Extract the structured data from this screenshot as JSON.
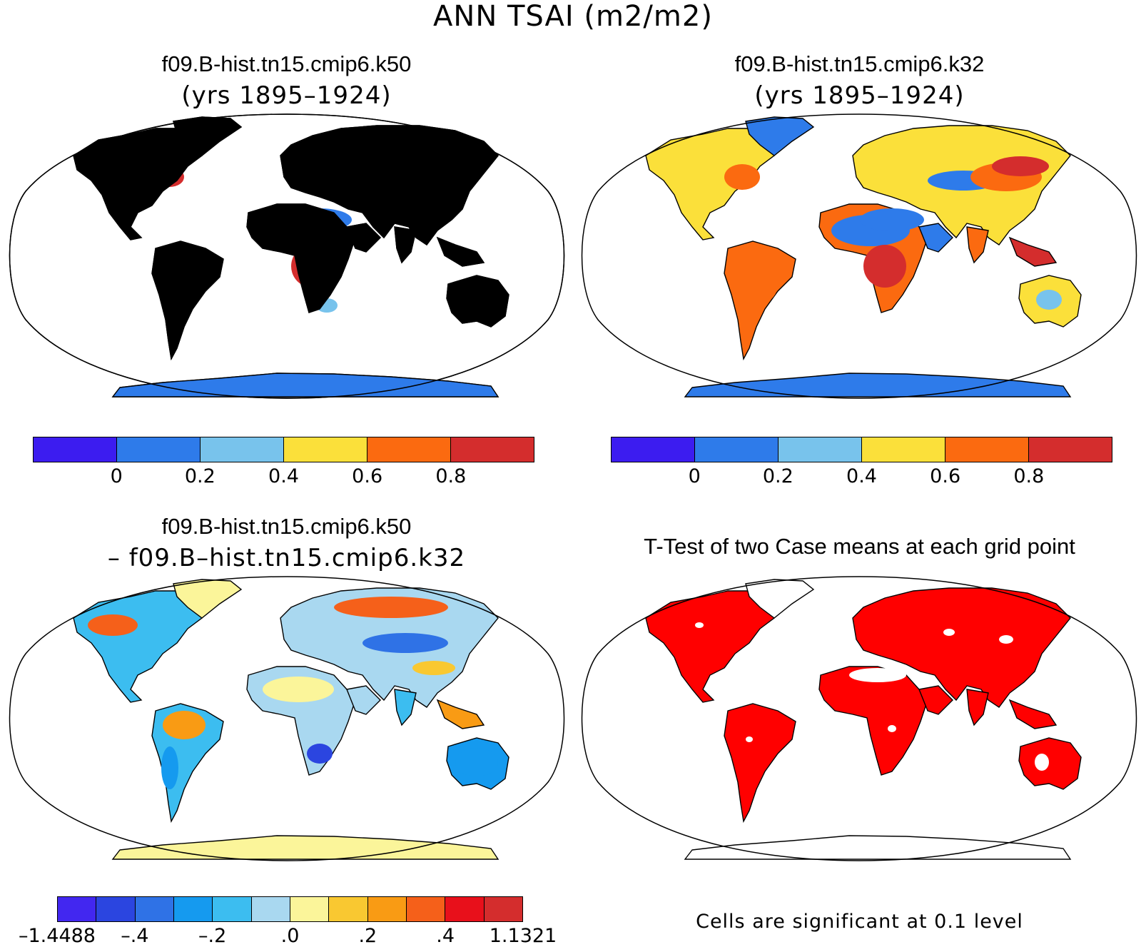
{
  "title": "ANN TSAI (m2/m2)",
  "panels": [
    {
      "name": "k50",
      "title": "f09.B-hist.tn15.cmip6.k50",
      "subtitle": "(yrs 1895–1924)"
    },
    {
      "name": "k32",
      "title": "f09.B-hist.tn15.cmip6.k32",
      "subtitle": "(yrs 1895–1924)"
    },
    {
      "name": "diff",
      "title": "f09.B-hist.tn15.cmip6.k50",
      "subtitle": "– f09.B–hist.tn15.cmip6.k32"
    },
    {
      "name": "ttest",
      "title": "T-Test of two Case means at each grid point",
      "subtitle": ""
    }
  ],
  "colorbar_main": {
    "colors": [
      "#3c1cf0",
      "#2e7bea",
      "#78c3ec",
      "#fbe03a",
      "#fb6a10",
      "#d42d2d"
    ],
    "labels": [
      "0",
      "0.2",
      "0.4",
      "0.6",
      "0.8"
    ]
  },
  "colorbar_diff": {
    "colors": [
      "#4227f0",
      "#2b45e0",
      "#2f72e6",
      "#159aef",
      "#3cbdf0",
      "#a9d8f0",
      "#fbf59a",
      "#f9c831",
      "#f99b14",
      "#f5601a",
      "#e8101b",
      "#d42d2d"
    ],
    "labels": [
      "–1.4488",
      "–.4",
      "–.2",
      ".0",
      ".2",
      ".4",
      "1.1321"
    ]
  },
  "note": "Cells are significant at 0.1 level",
  "colors": {
    "ocean": "#ffffff",
    "ice_main": "#2e7bea",
    "ice_diff": "#fbf59a",
    "sig": "#ff0000"
  }
}
